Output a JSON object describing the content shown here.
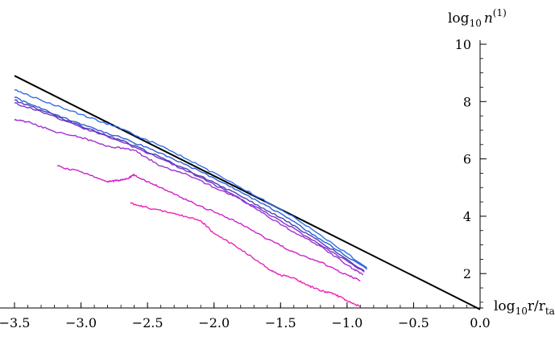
{
  "chart_data": {
    "type": "line",
    "title": "",
    "xlabel": {
      "prefix": "log",
      "sub": "10",
      "main": "r/r",
      "main_sub": "ta"
    },
    "ylabel": {
      "prefix": "log",
      "sub": "10",
      "main": "n",
      "sup": "(1)"
    },
    "xlim": [
      -3.5,
      0.0
    ],
    "ylim": [
      0.8,
      10.0
    ],
    "x_ticks": [
      -3.5,
      -3.0,
      -2.5,
      -2.0,
      -1.5,
      -1.0,
      -0.5,
      0.0
    ],
    "x_tick_labels": [
      "−3.5",
      "−3.0",
      "−2.5",
      "−2.0",
      "−1.5",
      "−1.0",
      "−0.5",
      "0.0"
    ],
    "y_ticks": [
      2,
      4,
      6,
      8,
      10
    ],
    "y_tick_labels": [
      "2",
      "4",
      "6",
      "8",
      "10"
    ],
    "grid": false,
    "colors": {
      "reference": "#000000",
      "blue": "#2f6fe8",
      "blue2": "#2c5cd6",
      "indigo": "#4a3db8",
      "purple": "#7a35cc",
      "violet": "#a030d0",
      "magenta": "#d020c8",
      "pink": "#ee22b6"
    },
    "series": [
      {
        "color_key": "reference",
        "x": [
          -3.5,
          0.0
        ],
        "y": [
          8.9,
          0.75
        ]
      },
      {
        "color_key": "blue",
        "x": [
          -3.5,
          -3.3,
          -3.0,
          -2.7,
          -2.4,
          -2.1,
          -1.8,
          -1.5,
          -1.2,
          -0.85
        ],
        "y": [
          8.4,
          8.05,
          7.55,
          7.05,
          6.45,
          5.75,
          5.0,
          4.25,
          3.35,
          2.2
        ]
      },
      {
        "color_key": "blue2",
        "x": [
          -3.5,
          -3.3,
          -3.0,
          -2.7,
          -2.4,
          -2.1,
          -1.8,
          -1.5,
          -1.2,
          -0.85
        ],
        "y": [
          8.15,
          7.75,
          7.2,
          6.75,
          6.2,
          5.55,
          4.85,
          4.1,
          3.2,
          2.15
        ]
      },
      {
        "color_key": "indigo",
        "x": [
          -3.5,
          -3.3,
          -3.0,
          -2.7,
          -2.4,
          -2.1,
          -1.8,
          -1.5,
          -1.2,
          -0.87
        ],
        "y": [
          8.05,
          7.7,
          7.15,
          6.65,
          6.05,
          5.4,
          4.7,
          3.95,
          3.1,
          2.1
        ]
      },
      {
        "color_key": "purple",
        "x": [
          -3.5,
          -3.3,
          -3.0,
          -2.7,
          -2.4,
          -2.1,
          -1.8,
          -1.5,
          -1.2,
          -0.87
        ],
        "y": [
          7.95,
          7.65,
          7.1,
          6.6,
          6.0,
          5.35,
          4.6,
          3.85,
          3.0,
          2.05
        ]
      },
      {
        "color_key": "violet",
        "x": [
          -3.5,
          -3.4,
          -3.2,
          -3.0,
          -2.8,
          -2.6,
          -2.4,
          -2.2,
          -2.0,
          -1.8,
          -1.6,
          -1.4,
          -1.2,
          -1.0,
          -0.88
        ],
        "y": [
          7.35,
          7.3,
          6.95,
          6.75,
          6.45,
          6.3,
          5.75,
          5.45,
          5.0,
          4.6,
          4.0,
          3.45,
          2.95,
          2.3,
          1.95
        ]
      },
      {
        "color_key": "magenta",
        "x": [
          -3.18,
          -3.0,
          -2.8,
          -2.73,
          -2.65,
          -2.6,
          -2.5,
          -2.4,
          -2.2,
          -2.0,
          -1.8,
          -1.6,
          -1.4,
          -1.2,
          -1.0,
          -0.9
        ],
        "y": [
          5.75,
          5.55,
          5.2,
          5.25,
          5.3,
          5.45,
          5.2,
          5.0,
          4.55,
          4.15,
          3.75,
          3.2,
          2.75,
          2.4,
          1.95,
          1.75
        ]
      },
      {
        "color_key": "pink",
        "x": [
          -2.63,
          -2.5,
          -2.3,
          -2.1,
          -2.0,
          -1.8,
          -1.6,
          -1.5,
          -1.4,
          -1.3,
          -1.2,
          -1.1,
          -1.0,
          -0.9
        ],
        "y": [
          4.45,
          4.3,
          4.1,
          3.85,
          3.4,
          2.85,
          2.2,
          1.95,
          1.85,
          1.6,
          1.4,
          1.3,
          1.05,
          0.85
        ]
      }
    ]
  }
}
